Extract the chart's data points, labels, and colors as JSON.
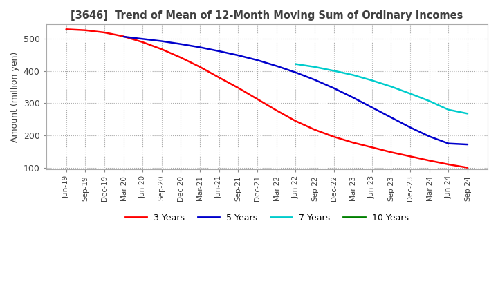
{
  "title": "[3646]  Trend of Mean of 12-Month Moving Sum of Ordinary Incomes",
  "ylabel": "Amount (million yen)",
  "ylim": [
    95,
    545
  ],
  "yticks": [
    100,
    200,
    300,
    400,
    500
  ],
  "background_color": "#ffffff",
  "grid_color": "#aaaaaa",
  "title_color": "#404040",
  "dates": [
    "Jun-19",
    "Sep-19",
    "Dec-19",
    "Mar-20",
    "Jun-20",
    "Sep-20",
    "Dec-20",
    "Mar-21",
    "Jun-21",
    "Sep-21",
    "Dec-21",
    "Mar-22",
    "Jun-22",
    "Sep-22",
    "Dec-22",
    "Mar-23",
    "Jun-23",
    "Sep-23",
    "Dec-23",
    "Mar-24",
    "Jun-24",
    "Sep-24"
  ],
  "series": {
    "3 Years": {
      "color": "#ff0000",
      "linewidth": 1.8,
      "data": [
        530,
        527,
        520,
        508,
        490,
        468,
        442,
        413,
        380,
        348,
        313,
        278,
        245,
        218,
        196,
        178,
        163,
        148,
        135,
        122,
        110,
        100
      ]
    },
    "5 Years": {
      "color": "#0000cc",
      "linewidth": 1.8,
      "data": [
        null,
        null,
        null,
        507,
        500,
        493,
        484,
        474,
        462,
        449,
        434,
        416,
        396,
        373,
        347,
        318,
        287,
        256,
        225,
        197,
        175,
        172
      ]
    },
    "7 Years": {
      "color": "#00cccc",
      "linewidth": 1.8,
      "data": [
        null,
        null,
        null,
        null,
        null,
        null,
        null,
        null,
        null,
        null,
        null,
        null,
        422,
        413,
        401,
        388,
        371,
        352,
        330,
        307,
        280,
        268
      ]
    },
    "10 Years": {
      "color": "#008000",
      "linewidth": 1.8,
      "data": [
        null,
        null,
        null,
        null,
        null,
        null,
        null,
        null,
        null,
        null,
        null,
        null,
        null,
        null,
        null,
        null,
        null,
        null,
        null,
        null,
        null,
        null
      ]
    }
  }
}
